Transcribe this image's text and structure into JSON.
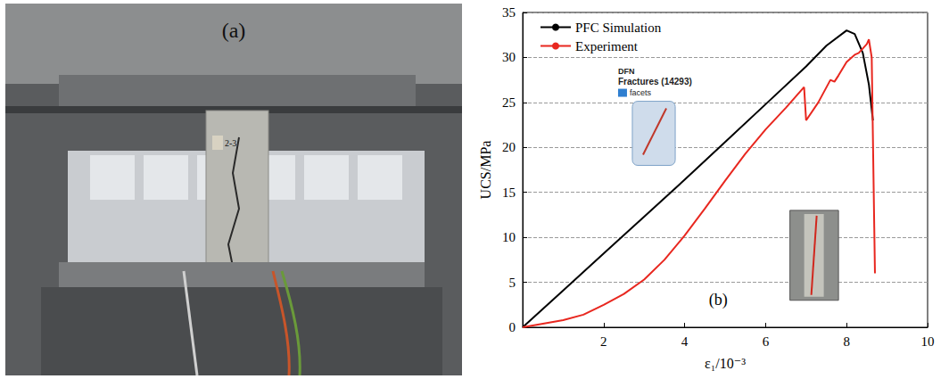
{
  "photo": {
    "label": "(a)",
    "specimen_label": "2-3"
  },
  "chart_data": {
    "type": "line",
    "panel_label": "(b)",
    "inset_labels": [
      "DFN",
      "Fractures (14293)",
      "facets"
    ],
    "x_label": "ε₁/10⁻³",
    "y_label": "UCS/MPa",
    "xlim": [
      0,
      10
    ],
    "xticks": [
      2,
      4,
      6,
      8,
      10
    ],
    "ylim": [
      0,
      35
    ],
    "yticks": [
      0,
      5,
      10,
      15,
      20,
      25,
      30,
      35
    ],
    "grid": true,
    "legend": "top-left",
    "series": [
      {
        "name": "PFC Simulation",
        "color": "#000000",
        "x": [
          0,
          1,
          2,
          3,
          4,
          5,
          6,
          7,
          7.5,
          8,
          8.2,
          8.4,
          8.55,
          8.65
        ],
        "values": [
          0,
          4.1,
          8.2,
          12.3,
          16.4,
          20.6,
          24.8,
          29,
          31.3,
          33,
          32.6,
          30.5,
          27,
          23
        ]
      },
      {
        "name": "Experiment",
        "color": "#e8271f",
        "x": [
          0,
          0.5,
          1,
          1.5,
          2,
          2.5,
          3,
          3.5,
          4,
          4.5,
          5,
          5.5,
          6,
          6.5,
          6.95,
          7.0,
          7.3,
          7.6,
          7.7,
          7.8,
          8.0,
          8.2,
          8.3,
          8.5,
          8.55,
          8.62,
          8.7
        ],
        "values": [
          0,
          0.4,
          0.8,
          1.4,
          2.5,
          3.7,
          5.3,
          7.5,
          10.2,
          13.2,
          16.3,
          19.3,
          22,
          24.4,
          26.7,
          23,
          25,
          27.5,
          27.3,
          28,
          29.5,
          30.3,
          30.5,
          31.5,
          32,
          30,
          6
        ]
      }
    ]
  }
}
